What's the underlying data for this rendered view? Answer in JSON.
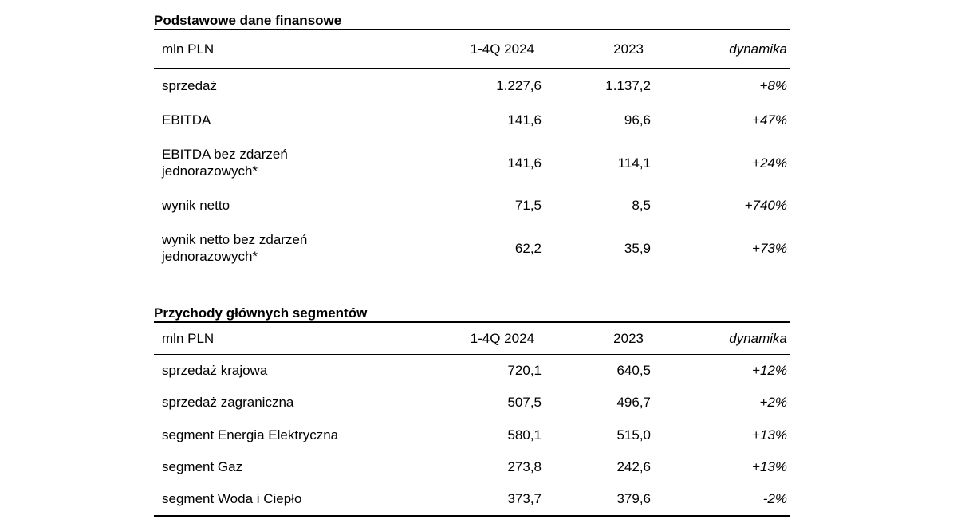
{
  "page": {
    "background": "#ffffff",
    "text_color": "#000000",
    "rule_color": "#000000"
  },
  "tables": [
    {
      "title": "Podstawowe dane finansowe",
      "columns": [
        "mln PLN",
        "1-4Q 2024",
        "2023",
        "dynamika"
      ],
      "rows": [
        {
          "label": "sprzedaż",
          "v2024": "1.227,6",
          "v2023": "1.137,2",
          "change": "+8%"
        },
        {
          "label": "EBITDA",
          "v2024": "141,6",
          "v2023": "96,6",
          "change": "+47%"
        },
        {
          "label": [
            "EBITDA bez zdarzeń",
            "jednorazowych*"
          ],
          "v2024": "141,6",
          "v2023": "114,1",
          "change": "+24%"
        },
        {
          "label": "wynik netto",
          "v2024": "71,5",
          "v2023": "8,5",
          "change": "+740%"
        },
        {
          "label": [
            "wynik netto bez zdarzeń",
            "jednorazowych*"
          ],
          "v2024": "62,2",
          "v2023": "35,9",
          "change": "+73%"
        }
      ]
    },
    {
      "title": "Przychody głównych segmentów",
      "columns": [
        "mln PLN",
        "1-4Q 2024",
        "2023",
        "dynamika"
      ],
      "rows": [
        {
          "label": "sprzedaż krajowa",
          "v2024": "720,1",
          "v2023": "640,5",
          "change": "+12%"
        },
        {
          "label": "sprzedaż zagraniczna",
          "v2024": "507,5",
          "v2023": "496,7",
          "change": "+2%"
        },
        {
          "label": "segment Energia Elektryczna",
          "v2024": "580,1",
          "v2023": "515,0",
          "change": "+13%"
        },
        {
          "label": "segment Gaz",
          "v2024": "273,8",
          "v2023": "242,6",
          "change": "+13%"
        },
        {
          "label": "segment Woda i Ciepło",
          "v2024": "373,7",
          "v2023": "379,6",
          "change": "-2%"
        }
      ]
    }
  ]
}
